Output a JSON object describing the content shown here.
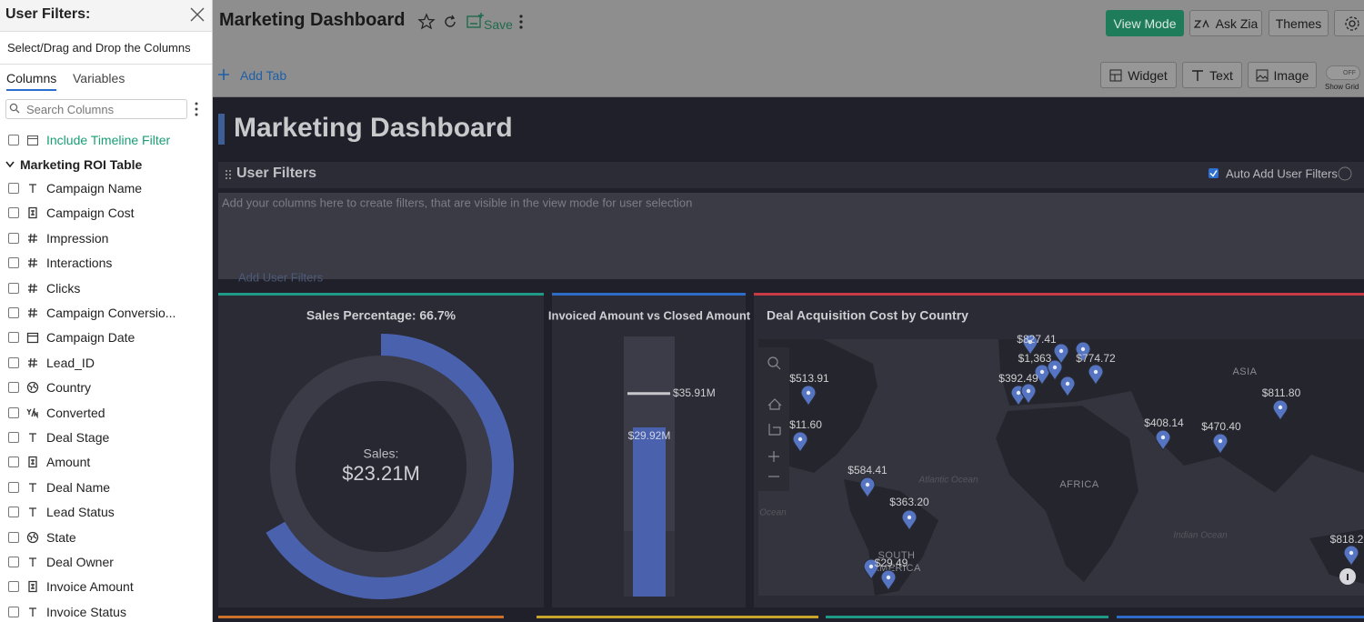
{
  "side_panel": {
    "title": "User Filters:",
    "instruction": "Select/Drag and Drop the Columns",
    "tabs": [
      "Columns",
      "Variables"
    ],
    "search_placeholder": "Search Columns",
    "timeline_filter": "Include Timeline Filter",
    "table_name": "Marketing ROI Table",
    "columns": [
      {
        "name": "Campaign Name",
        "type": "text"
      },
      {
        "name": "Campaign Cost",
        "type": "currency"
      },
      {
        "name": "Impression",
        "type": "number"
      },
      {
        "name": "Interactions",
        "type": "number"
      },
      {
        "name": "Clicks",
        "type": "number"
      },
      {
        "name": "Campaign Conversio...",
        "type": "number"
      },
      {
        "name": "Campaign Date",
        "type": "date"
      },
      {
        "name": "Lead_ID",
        "type": "number"
      },
      {
        "name": "Country",
        "type": "geo"
      },
      {
        "name": "Converted",
        "type": "boolean"
      },
      {
        "name": "Deal Stage",
        "type": "text"
      },
      {
        "name": "Amount",
        "type": "currency"
      },
      {
        "name": "Deal Name",
        "type": "text"
      },
      {
        "name": "Lead Status",
        "type": "text"
      },
      {
        "name": "State",
        "type": "geo"
      },
      {
        "name": "Deal Owner",
        "type": "text"
      },
      {
        "name": "Invoice Amount",
        "type": "currency"
      },
      {
        "name": "Invoice Status",
        "type": "text"
      }
    ]
  },
  "toolbar": {
    "title": "Marketing Dashboard",
    "save": "Save",
    "buttons": [
      "View Mode",
      "Ask Zia",
      "Themes"
    ],
    "add_tab": "Add Tab",
    "insert_buttons": [
      "Widget",
      "Text",
      "Image"
    ],
    "grid_toggle": "OFF",
    "show_grid": "Show Grid"
  },
  "dashboard": {
    "title": "Marketing Dashboard",
    "user_filters": {
      "title": "User Filters",
      "auto_add": "Auto Add User Filters",
      "placeholder": "Add your columns here to create filters, that are visible in the view mode for user selection",
      "add_link": "Add User Filters"
    },
    "widgets": [
      {
        "title": "Sales Percentage: 66.7%",
        "percent": 66.7,
        "center_label": "Sales:",
        "center_value": "$23.21M"
      },
      {
        "title": "Invoiced Amount vs Closed Amount",
        "ylim": [
          0,
          46
        ],
        "values": [
          29.92,
          35.91
        ],
        "value_labels": [
          "$29.92M",
          "$35.91M"
        ]
      },
      {
        "title": "Deal Acquisition Cost by Country",
        "regions": [
          "ASIA",
          "AFRICA",
          "Atlantic Ocean",
          "SOUTH",
          "AMERICA",
          "Indian Ocean",
          "Ocean"
        ],
        "pin_labels": [
          "$827.41",
          "$513.91",
          "$1,363",
          "$774.72",
          "$392.49",
          "$811.80",
          "$11.60",
          "$408.14",
          "$470.40",
          "$584.41",
          "$363.20",
          "$29.49",
          "$818.2"
        ]
      }
    ]
  }
}
